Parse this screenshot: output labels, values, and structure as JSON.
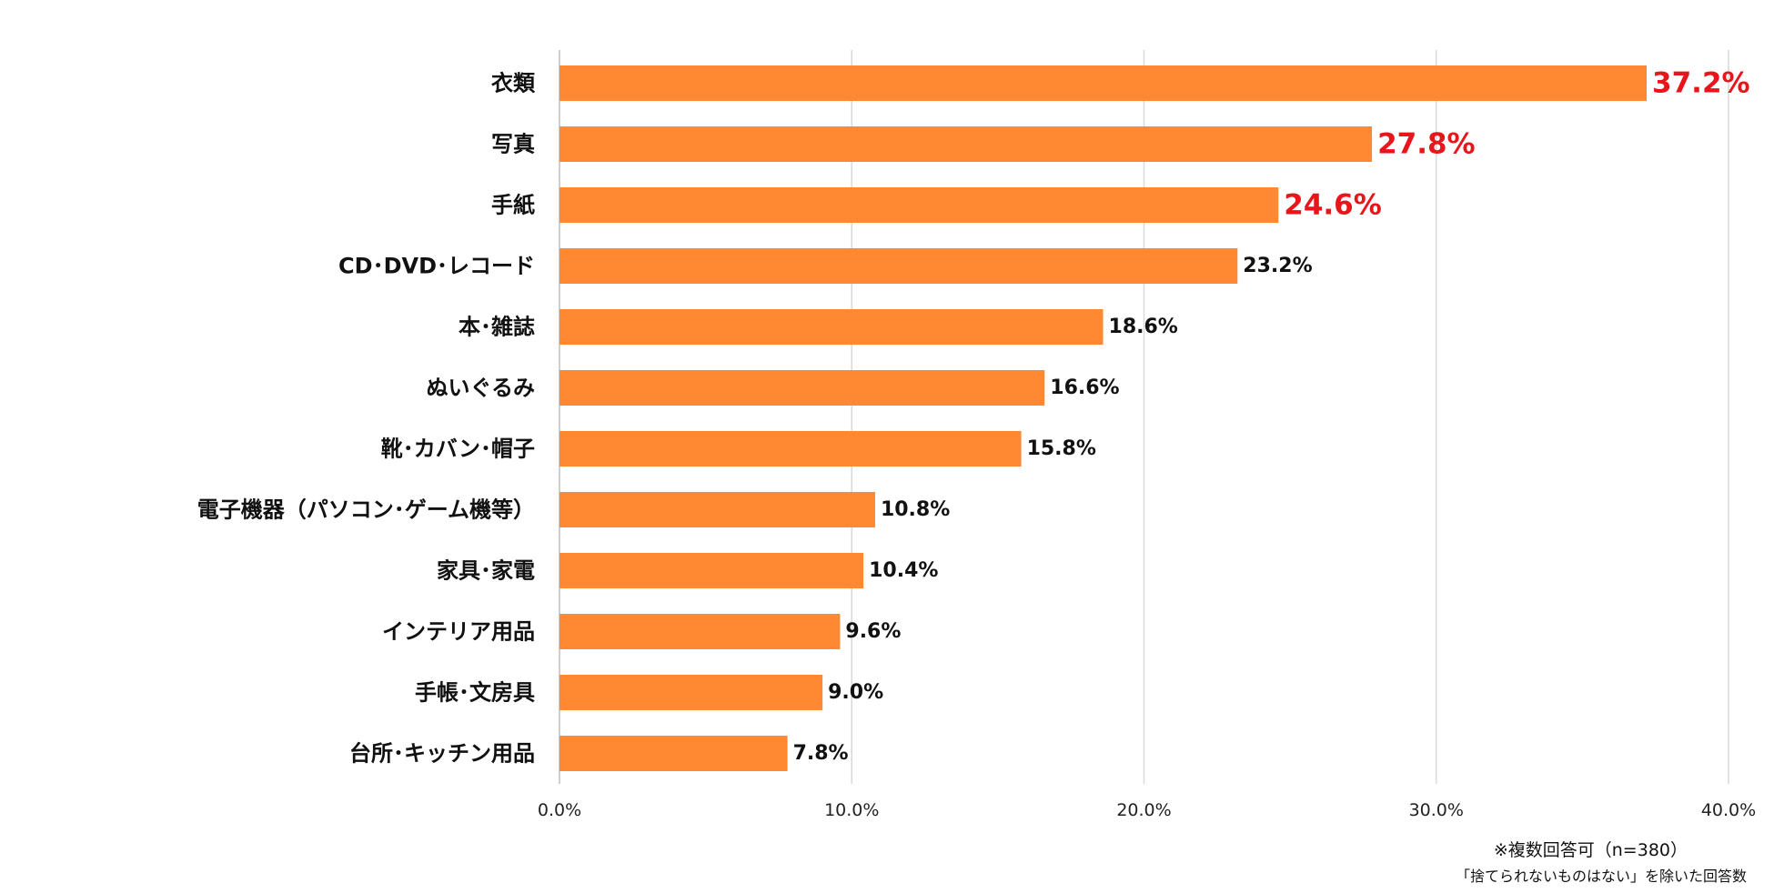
{
  "chart_data": {
    "type": "bar",
    "orientation": "horizontal",
    "categories": [
      "衣類",
      "写真",
      "手紙",
      "CD･DVD･レコード",
      "本･雑誌",
      "ぬいぐるみ",
      "靴･カバン･帽子",
      "電子機器（パソコン･ゲーム機等）",
      "家具･家電",
      "インテリア用品",
      "手帳･文房具",
      "台所･キッチン用品"
    ],
    "values": [
      37.2,
      27.8,
      24.6,
      23.2,
      18.6,
      16.6,
      15.8,
      10.8,
      10.4,
      9.6,
      9.0,
      7.8
    ],
    "value_labels": [
      "37.2%",
      "27.8%",
      "24.6%",
      "23.2%",
      "18.6%",
      "16.6%",
      "15.8%",
      "10.8%",
      "10.4%",
      "9.6%",
      "9.0%",
      "7.8%"
    ],
    "highlighted_top": 3,
    "xlim": [
      0,
      40
    ],
    "xticks": [
      0,
      10,
      20,
      30,
      40
    ],
    "xtick_labels": [
      "0.0%",
      "10.0%",
      "20.0%",
      "30.0%",
      "40.0%"
    ],
    "grid": true,
    "legend": "none",
    "title": "",
    "xlabel": "",
    "ylabel": ""
  },
  "colors": {
    "bar": "#FF8833",
    "highlight_label": "#E8151B",
    "gridline": "#D9D9D9"
  },
  "notes": {
    "multiple_answers": "※複数回答可（n=380）",
    "exclusion": "「捨てられないものはない」を除いた回答数"
  }
}
